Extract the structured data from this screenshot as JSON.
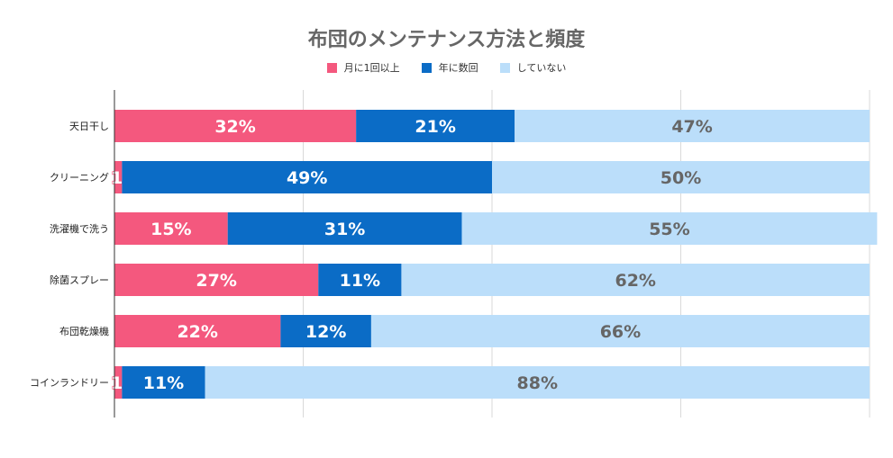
{
  "chart_data": {
    "type": "bar",
    "orientation": "horizontal",
    "stacked": true,
    "title": "布団のメンテナンス方法と頻度",
    "categories": [
      "天日干し",
      "クリーニング",
      "洗濯機で洗う",
      "除菌スプレー",
      "布団乾燥機",
      "コインランドリー"
    ],
    "series": [
      {
        "name": "月に1回以上",
        "color": "#F4587E",
        "values": [
          32,
          1,
          15,
          27,
          22,
          1
        ]
      },
      {
        "name": "年に数回",
        "color": "#0B6CC6",
        "values": [
          21,
          49,
          31,
          11,
          12,
          11
        ]
      },
      {
        "name": "していない",
        "color": "#BBDEFA",
        "values": [
          47,
          50,
          55,
          62,
          66,
          88
        ]
      }
    ],
    "value_suffix": "%",
    "xlim": [
      0,
      100
    ],
    "grid": true,
    "legend_position": "top"
  }
}
